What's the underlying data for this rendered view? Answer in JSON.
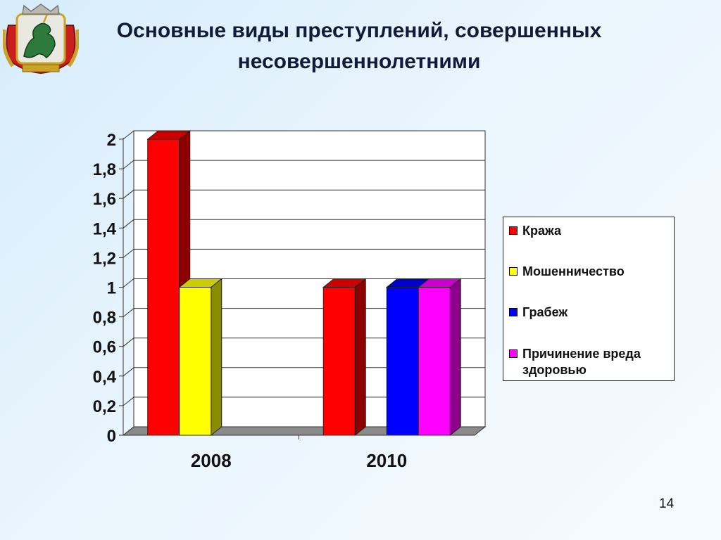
{
  "title": {
    "line1": "Основные виды преступлений, совершенных",
    "line2": "несовершеннолетними"
  },
  "page_number": "14",
  "emblem": {
    "icon": "coat-of-arms-icon"
  },
  "chart_data": {
    "type": "bar",
    "categories": [
      "2008",
      "2010"
    ],
    "series": [
      {
        "name": "Кража",
        "values": [
          2,
          1
        ],
        "color": "#ff0000"
      },
      {
        "name": "Мошенничество",
        "values": [
          1,
          0
        ],
        "color": "#ffff00"
      },
      {
        "name": "Грабеж",
        "values": [
          0,
          1
        ],
        "color": "#0000ff"
      },
      {
        "name": "Причинение вреда здоровью",
        "values": [
          0,
          1
        ],
        "color": "#ff00ff"
      }
    ],
    "ylim": [
      0,
      2
    ],
    "y_ticks": [
      "0",
      "0,2",
      "0,4",
      "0,6",
      "0,8",
      "1",
      "1,2",
      "1,4",
      "1,6",
      "1,8",
      "2"
    ],
    "grid": true,
    "three_d": true,
    "legend_position": "right"
  },
  "legend": {
    "items": [
      {
        "label": "Кража",
        "color": "#ff0000"
      },
      {
        "label": "Мошенничество",
        "color": "#ffff00"
      },
      {
        "label": "Грабеж",
        "color": "#0000ff"
      },
      {
        "label": "Причинение вреда здоровью",
        "color": "#ff00ff"
      }
    ]
  }
}
